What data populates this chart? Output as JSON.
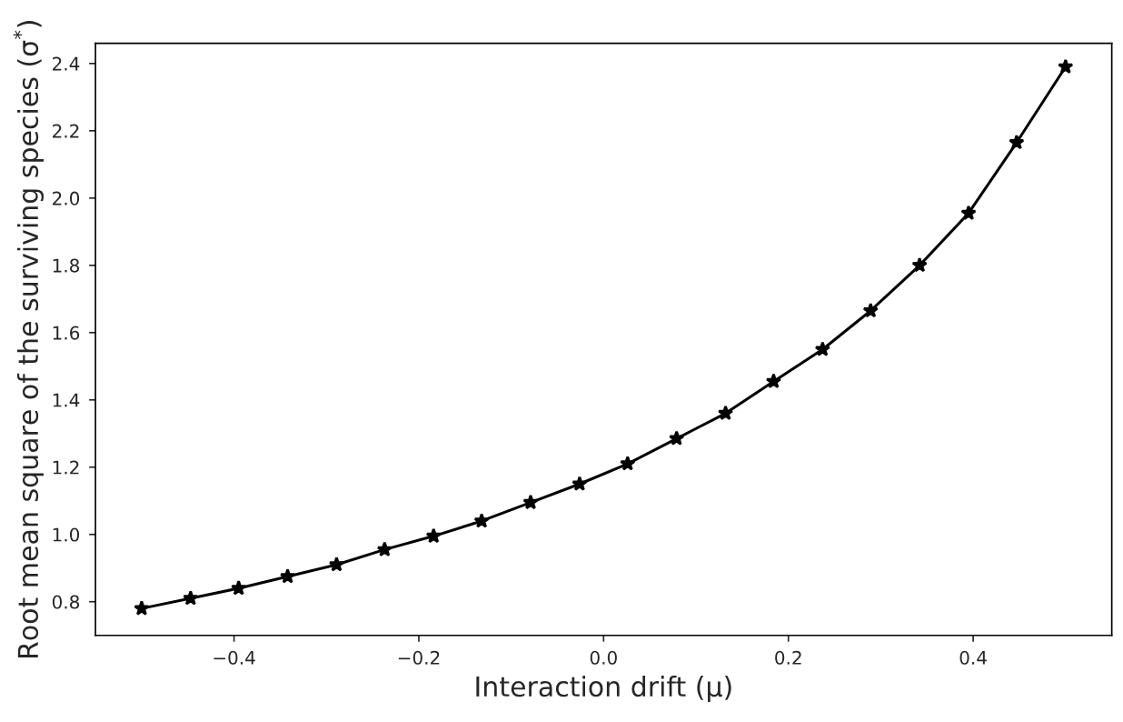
{
  "chart_data": {
    "type": "line",
    "xlabel": "Interaction drift (μ)",
    "ylabel": "Root mean square of the surviving species (σ$^{*}$)",
    "x": [
      -0.5,
      -0.447,
      -0.395,
      -0.342,
      -0.289,
      -0.237,
      -0.184,
      -0.132,
      -0.079,
      -0.026,
      0.026,
      0.079,
      0.132,
      0.184,
      0.237,
      0.289,
      0.342,
      0.395,
      0.447,
      0.5
    ],
    "series": [
      {
        "color": "#000000",
        "values": [
          0.78,
          0.81,
          0.84,
          0.875,
          0.91,
          0.955,
          0.995,
          1.04,
          1.095,
          1.15,
          1.21,
          1.285,
          1.36,
          1.455,
          1.55,
          1.665,
          1.8,
          1.955,
          2.165,
          2.39
        ]
      }
    ],
    "marker": "star",
    "line_style": "solid",
    "grid": false,
    "legend": false,
    "xlim": [
      -0.55,
      0.55
    ],
    "ylim": [
      0.7,
      2.46
    ],
    "xticks": [
      {
        "value": -0.4,
        "label": "−0.4"
      },
      {
        "value": -0.2,
        "label": "−0.2"
      },
      {
        "value": 0,
        "label": "0.0"
      },
      0.2,
      0.4
    ],
    "yticks": [
      0.8,
      {
        "value": 1,
        "label": "1.0"
      },
      1.2,
      1.4,
      1.6,
      1.8,
      {
        "value": 2,
        "label": "2.0"
      },
      2.2,
      2.4
    ]
  }
}
